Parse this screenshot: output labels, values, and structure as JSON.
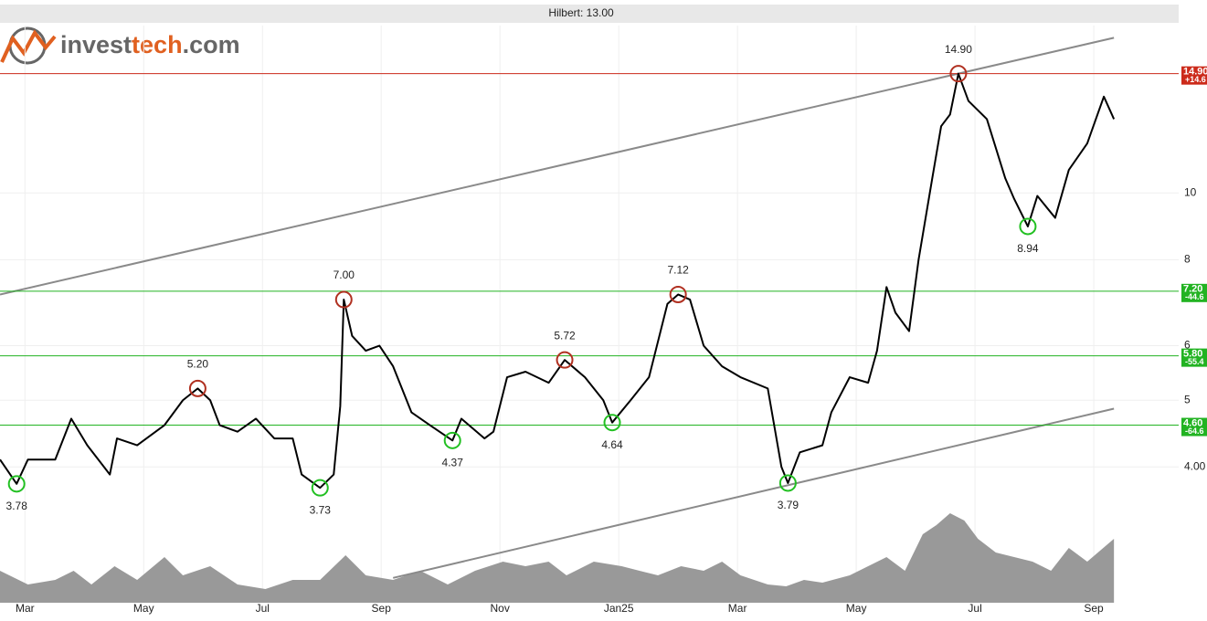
{
  "logo": [
    "invest",
    "tech",
    ".com"
  ],
  "chart_data": {
    "type": "line",
    "title": "Hilbert: 13.00",
    "log_y": true,
    "grid": true,
    "xlim": [
      -0.42,
      19.43
    ],
    "ylim": [
      2.54,
      17.5
    ],
    "xticks": [
      {
        "value": 0,
        "label": "Mar"
      },
      {
        "value": 2,
        "label": "May"
      },
      {
        "value": 4,
        "label": "Jul"
      },
      {
        "value": 6,
        "label": "Sep"
      },
      {
        "value": 8,
        "label": "Nov"
      },
      {
        "value": 10,
        "label": "Jan25"
      },
      {
        "value": 12,
        "label": "Mar"
      },
      {
        "value": 14,
        "label": "May"
      },
      {
        "value": 16,
        "label": "Jul"
      },
      {
        "value": 18,
        "label": "Sep"
      }
    ],
    "yticks": [
      {
        "value": 4,
        "label": "4.00"
      },
      5,
      6,
      8,
      10
    ],
    "series": [
      {
        "color": "#000000",
        "x": [
          -0.42,
          -0.14,
          0.05,
          0.51,
          0.78,
          1.05,
          1.43,
          1.55,
          1.89,
          2.35,
          2.66,
          2.91,
          3.12,
          3.28,
          3.58,
          3.89,
          4.2,
          4.51,
          4.66,
          4.97,
          5.2,
          5.31,
          5.37,
          5.51,
          5.74,
          5.97,
          6.2,
          6.51,
          6.82,
          7.2,
          7.35,
          7.74,
          7.89,
          8.12,
          8.43,
          8.82,
          9.09,
          9.43,
          9.74,
          9.89,
          10.2,
          10.51,
          10.82,
          11,
          11.2,
          11.43,
          11.74,
          12.05,
          12.51,
          12.74,
          12.85,
          13.05,
          13.43,
          13.58,
          13.89,
          14.2,
          14.35,
          14.51,
          14.66,
          14.89,
          15.05,
          15.28,
          15.43,
          15.58,
          15.72,
          15.89,
          16.2,
          16.51,
          16.66,
          16.89,
          17.05,
          17.35,
          17.58,
          17.89,
          18.17,
          18.34
        ],
        "values": [
          4.1,
          3.78,
          4.1,
          4.1,
          4.7,
          4.3,
          3.9,
          4.4,
          4.3,
          4.6,
          5.0,
          5.2,
          5.0,
          4.6,
          4.5,
          4.7,
          4.4,
          4.4,
          3.9,
          3.73,
          3.9,
          4.9,
          7.0,
          6.2,
          5.9,
          6.0,
          5.6,
          4.8,
          4.6,
          4.37,
          4.7,
          4.4,
          4.5,
          5.4,
          5.5,
          5.3,
          5.72,
          5.4,
          5.0,
          4.64,
          5.0,
          5.4,
          6.9,
          7.12,
          7.0,
          6.0,
          5.6,
          5.4,
          5.2,
          4.0,
          3.79,
          4.2,
          4.3,
          4.8,
          5.4,
          5.3,
          5.9,
          7.3,
          6.7,
          6.3,
          8.0,
          10.5,
          12.5,
          13.0,
          14.9,
          13.6,
          12.8,
          10.5,
          9.8,
          8.94,
          9.9,
          9.2,
          10.8,
          11.8,
          13.8,
          12.8
        ]
      }
    ],
    "trend_color": "#8a8a8a",
    "trend_lines": [
      {
        "x": [
          -0.42,
          18.34
        ],
        "values": [
          7.12,
          16.8
        ]
      },
      {
        "x": [
          6.2,
          18.34
        ],
        "values": [
          2.76,
          4.86
        ]
      }
    ],
    "levels": [
      {
        "value": 14.9,
        "label": "14.90",
        "change": 14.6,
        "change_label": "+14.6",
        "color": "#cc2a1a"
      },
      {
        "value": 7.2,
        "label": "7.20",
        "change": -44.6,
        "color": "#22b322"
      },
      {
        "value": 5.8,
        "label": "5.80",
        "change": -55.4,
        "color": "#22b322"
      },
      {
        "value": 4.6,
        "label": "4.60",
        "change": -64.6,
        "color": "#22b322"
      }
    ],
    "top_color": "#b03020",
    "bottom_color": "#22c022",
    "extremes": [
      {
        "x": -0.14,
        "value": 3.78,
        "kind": "bottom"
      },
      {
        "x": 2.91,
        "value": 5.2,
        "label": "5.20",
        "kind": "top"
      },
      {
        "x": 4.97,
        "value": 3.73,
        "kind": "bottom"
      },
      {
        "x": 5.37,
        "value": 7.0,
        "label": "7.00",
        "kind": "top"
      },
      {
        "x": 7.2,
        "value": 4.37,
        "kind": "bottom"
      },
      {
        "x": 9.09,
        "value": 5.72,
        "kind": "top"
      },
      {
        "x": 9.89,
        "value": 4.64,
        "kind": "bottom"
      },
      {
        "x": 11.0,
        "value": 7.12,
        "kind": "top"
      },
      {
        "x": 12.85,
        "value": 3.79,
        "kind": "bottom"
      },
      {
        "x": 15.72,
        "value": 14.9,
        "label": "14.90",
        "kind": "top"
      },
      {
        "x": 16.89,
        "value": 8.94,
        "kind": "bottom"
      }
    ],
    "volume": {
      "color": "#999999",
      "ylim": [
        0,
        100
      ],
      "x": [
        -0.42,
        0.05,
        0.51,
        0.82,
        1.12,
        1.51,
        1.89,
        2.35,
        2.66,
        3.12,
        3.58,
        4.05,
        4.51,
        4.97,
        5.4,
        5.74,
        6.2,
        6.66,
        7.12,
        7.58,
        8.05,
        8.43,
        8.82,
        9.12,
        9.58,
        10.05,
        10.35,
        10.66,
        11.05,
        11.43,
        11.74,
        12.05,
        12.51,
        12.82,
        13.12,
        13.43,
        13.89,
        14.2,
        14.51,
        14.82,
        15.12,
        15.35,
        15.58,
        15.82,
        16.05,
        16.35,
        16.66,
        16.97,
        17.28,
        17.58,
        17.89,
        18.34
      ],
      "values": [
        35,
        20,
        25,
        35,
        20,
        40,
        25,
        50,
        30,
        40,
        20,
        15,
        25,
        25,
        52,
        30,
        25,
        35,
        20,
        35,
        45,
        40,
        45,
        30,
        45,
        40,
        35,
        30,
        40,
        35,
        45,
        30,
        20,
        18,
        25,
        22,
        30,
        40,
        50,
        35,
        75,
        85,
        98,
        90,
        70,
        55,
        50,
        45,
        35,
        60,
        45,
        70
      ]
    }
  }
}
